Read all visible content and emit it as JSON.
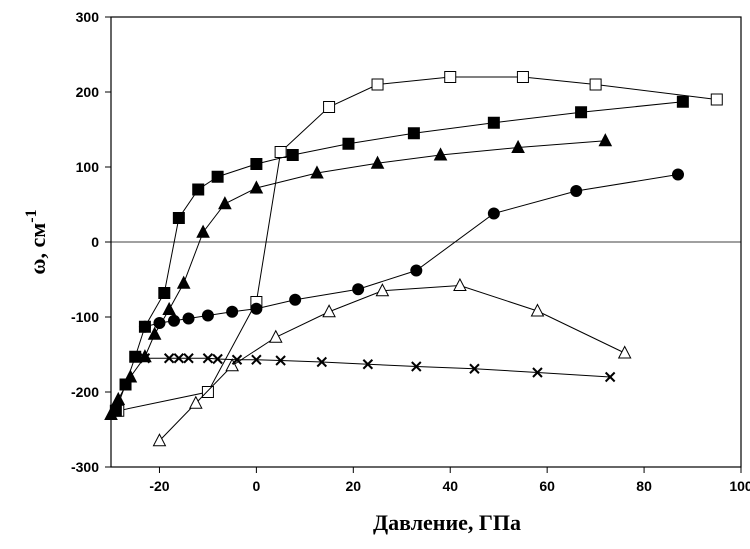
{
  "chart_data": {
    "type": "scatter",
    "title": "",
    "xlabel": "Давление, ГПа",
    "ylabel_base": "ω, см",
    "ylabel_sup": "-1",
    "xlim": [
      -30,
      100
    ],
    "ylim": [
      -300,
      300
    ],
    "xticks": [
      -20,
      0,
      20,
      40,
      60,
      80,
      100
    ],
    "yticks": [
      -300,
      -200,
      -100,
      0,
      100,
      200,
      300
    ],
    "zero_line": true,
    "grid": false,
    "series": [
      {
        "marker": "square-open",
        "x": [
          -28.5,
          -10,
          0,
          5,
          15,
          25,
          40,
          55,
          70,
          95
        ],
        "y": [
          -225,
          -200,
          -80,
          120,
          180,
          210,
          220,
          220,
          210,
          190
        ]
      },
      {
        "marker": "square-filled",
        "x": [
          -29,
          -27,
          -25,
          -23,
          -19,
          -16,
          -12,
          -8,
          0,
          7.5,
          19,
          32.5,
          49,
          67,
          88
        ],
        "y": [
          -225,
          -190,
          -153,
          -113,
          -68,
          32,
          70,
          87,
          104,
          116,
          131,
          145,
          159,
          173,
          187
        ]
      },
      {
        "marker": "triangle-filled",
        "x": [
          -30,
          -28.5,
          -26,
          -23,
          -21,
          -18,
          -15,
          -11,
          -6.5,
          0,
          12.5,
          25,
          38,
          54,
          72
        ],
        "y": [
          -230,
          -210,
          -180,
          -153,
          -123,
          -90,
          -55,
          13,
          51,
          72,
          92,
          105,
          116,
          126,
          135
        ]
      },
      {
        "marker": "circle-filled",
        "x": [
          -23,
          -20,
          -17,
          -14,
          -10,
          -5,
          0,
          8,
          21,
          33,
          49,
          66,
          87
        ],
        "y": [
          -113,
          -108,
          -105,
          -102,
          -98,
          -93,
          -89,
          -77,
          -63,
          -38,
          38,
          68,
          90
        ]
      },
      {
        "marker": "triangle-open",
        "x": [
          -20,
          -12.5,
          -5,
          4,
          15,
          26,
          42,
          58,
          76
        ],
        "y": [
          -265,
          -215,
          -165,
          -127,
          -93,
          -65,
          -58,
          -92,
          -148
        ]
      },
      {
        "marker": "x",
        "x": [
          -23,
          -18,
          -16,
          -14,
          -10,
          -8,
          -4,
          0,
          5,
          13.5,
          23,
          33,
          45,
          58,
          73
        ],
        "y": [
          -155,
          -155,
          -155,
          -155,
          -155,
          -156,
          -157,
          -157,
          -158,
          -160,
          -163,
          -166,
          -169,
          -174,
          -180
        ]
      }
    ]
  }
}
